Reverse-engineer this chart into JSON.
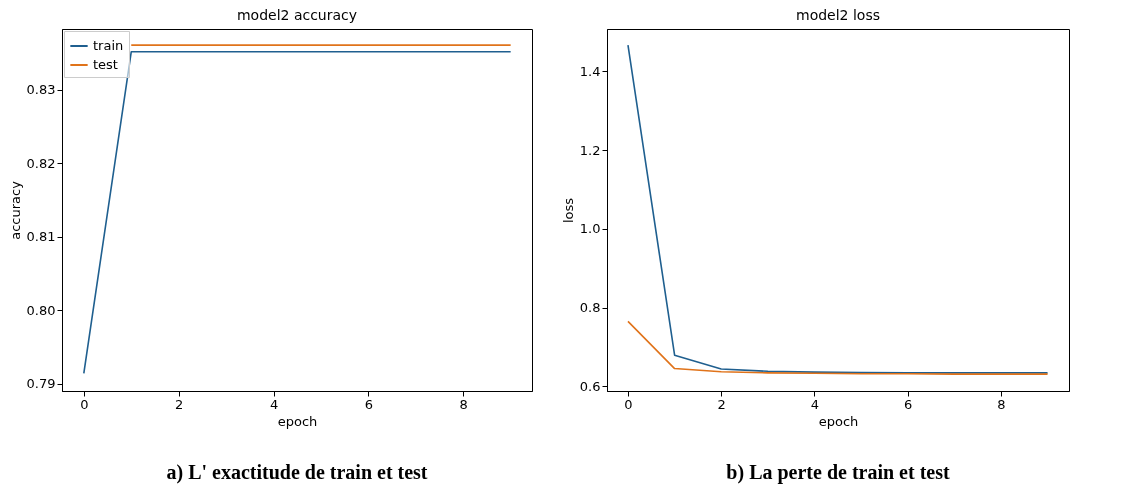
{
  "chart_data": [
    {
      "type": "line",
      "title": "model2 accuracy",
      "xlabel": "epoch",
      "ylabel": "accuracy",
      "x": [
        0,
        1,
        2,
        3,
        4,
        5,
        6,
        7,
        8,
        9
      ],
      "series": [
        {
          "name": "train",
          "color": "#1f5f8f",
          "values": [
            0.7914,
            0.8352,
            0.8352,
            0.8352,
            0.8352,
            0.8352,
            0.8352,
            0.8352,
            0.8352,
            0.8352
          ]
        },
        {
          "name": "test",
          "color": "#e0731a",
          "values": [
            null,
            0.8361,
            0.8361,
            0.8361,
            0.8361,
            0.8361,
            0.8361,
            0.8361,
            0.8361,
            0.8361
          ]
        }
      ],
      "xlim": [
        -0.46,
        9.45
      ],
      "ylim": [
        0.789,
        0.8383
      ],
      "xticks": [
        0,
        2,
        4,
        6,
        8
      ],
      "yticks": [
        0.79,
        {
          "value": 0.8,
          "label": "0.80"
        },
        0.81,
        0.82,
        0.83
      ],
      "legend": "top left",
      "annotations": [
        "a) L' exactitude de train et test"
      ]
    },
    {
      "type": "line",
      "title": "model2 loss",
      "xlabel": "epoch",
      "ylabel": "loss",
      "x": [
        0,
        1,
        2,
        3,
        4,
        5,
        6,
        7,
        8,
        9
      ],
      "series": [
        {
          "name": "train",
          "color": "#1f5f8f",
          "values": [
            1.467,
            0.679,
            0.644,
            0.638,
            0.636,
            0.635,
            0.634,
            0.634,
            0.634,
            0.634
          ]
        },
        {
          "name": "test",
          "color": "#e0731a",
          "values": [
            0.765,
            0.645,
            0.637,
            0.634,
            0.633,
            0.632,
            0.632,
            0.631,
            0.631,
            0.631
          ]
        }
      ],
      "xlim": [
        -0.45,
        9.46
      ],
      "ylim": [
        0.588,
        1.508
      ],
      "xticks": [
        0,
        2,
        4,
        6,
        8
      ],
      "yticks": [
        {
          "value": 0.6,
          "label": "0.6"
        },
        {
          "value": 0.8,
          "label": "0.8"
        },
        {
          "value": 1.0,
          "label": "1.0"
        },
        {
          "value": 1.2,
          "label": "1.2"
        },
        {
          "value": 1.4,
          "label": "1.4"
        }
      ],
      "legend": "top left",
      "annotations": [
        "b) La perte  de train et test"
      ]
    }
  ]
}
